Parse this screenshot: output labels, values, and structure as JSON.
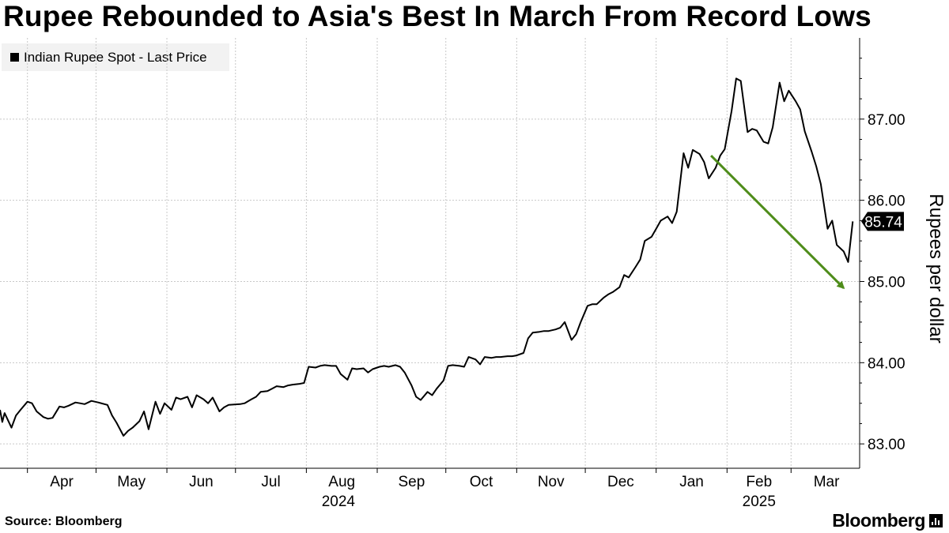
{
  "title": "Rupee Rebounded to Asia's Best In March From Record Lows",
  "source": "Source: Bloomberg",
  "brand": "Bloomberg",
  "chart_data": {
    "type": "line",
    "title": "Rupee Rebounded to Asia's Best In March From Record Lows",
    "ylabel": "Rupees per dollar",
    "ylim": [
      82.7,
      88.0
    ],
    "yticks": [
      83.0,
      84.0,
      85.0,
      86.0,
      87.0
    ],
    "ytick_labels": [
      "83.00",
      "84.00",
      "85.00",
      "86.00",
      "87.00"
    ],
    "xlim": [
      "2024-03-20",
      "2025-03-31"
    ],
    "xticks": [
      {
        "date": "2024-04-01",
        "label": "Apr"
      },
      {
        "date": "2024-05-01",
        "label": "May"
      },
      {
        "date": "2024-06-01",
        "label": "Jun"
      },
      {
        "date": "2024-07-01",
        "label": "Jul"
      },
      {
        "date": "2024-08-01",
        "label": "Aug"
      },
      {
        "date": "2024-09-01",
        "label": "Sep"
      },
      {
        "date": "2024-10-01",
        "label": "Oct"
      },
      {
        "date": "2024-11-01",
        "label": "Nov"
      },
      {
        "date": "2024-12-01",
        "label": "Dec"
      },
      {
        "date": "2025-01-01",
        "label": "Jan"
      },
      {
        "date": "2025-02-01",
        "label": "Feb"
      },
      {
        "date": "2025-03-01",
        "label": "Mar"
      }
    ],
    "year_labels": [
      {
        "date": "2024-08-15",
        "label": "2024"
      },
      {
        "date": "2025-02-15",
        "label": "2025"
      }
    ],
    "grid": true,
    "legend": "top-left",
    "last_value_label": "85.74",
    "colors": {
      "line": "#000000",
      "arrow": "#4e8c1a",
      "grid": "#c8c8c8",
      "badge": "#000000",
      "legend_bg": "#f2f2f2"
    },
    "annotations": [
      {
        "type": "arrow",
        "from": {
          "date": "2025-01-25",
          "value": 86.55
        },
        "to": {
          "date": "2025-03-24",
          "value": 84.92
        }
      }
    ],
    "series": [
      {
        "name": "Indian Rupee Spot - Last Price",
        "points": [
          [
            "2024-03-20",
            83.42
          ],
          [
            "2024-03-21",
            83.27
          ],
          [
            "2024-03-22",
            83.38
          ],
          [
            "2024-03-25",
            83.2
          ],
          [
            "2024-03-27",
            83.35
          ],
          [
            "2024-03-29",
            83.42
          ],
          [
            "2024-04-01",
            83.52
          ],
          [
            "2024-04-03",
            83.5
          ],
          [
            "2024-04-05",
            83.4
          ],
          [
            "2024-04-08",
            83.33
          ],
          [
            "2024-04-10",
            83.31
          ],
          [
            "2024-04-12",
            83.32
          ],
          [
            "2024-04-15",
            83.46
          ],
          [
            "2024-04-17",
            83.45
          ],
          [
            "2024-04-19",
            83.47
          ],
          [
            "2024-04-22",
            83.51
          ],
          [
            "2024-04-24",
            83.5
          ],
          [
            "2024-04-26",
            83.49
          ],
          [
            "2024-04-29",
            83.53
          ],
          [
            "2024-05-02",
            83.51
          ],
          [
            "2024-05-06",
            83.48
          ],
          [
            "2024-05-08",
            83.35
          ],
          [
            "2024-05-10",
            83.26
          ],
          [
            "2024-05-13",
            83.1
          ],
          [
            "2024-05-15",
            83.16
          ],
          [
            "2024-05-17",
            83.2
          ],
          [
            "2024-05-20",
            83.28
          ],
          [
            "2024-05-22",
            83.4
          ],
          [
            "2024-05-24",
            83.18
          ],
          [
            "2024-05-27",
            83.52
          ],
          [
            "2024-05-29",
            83.37
          ],
          [
            "2024-05-31",
            83.5
          ],
          [
            "2024-06-03",
            83.42
          ],
          [
            "2024-06-05",
            83.57
          ],
          [
            "2024-06-07",
            83.55
          ],
          [
            "2024-06-10",
            83.58
          ],
          [
            "2024-06-12",
            83.45
          ],
          [
            "2024-06-14",
            83.6
          ],
          [
            "2024-06-17",
            83.55
          ],
          [
            "2024-06-19",
            83.5
          ],
          [
            "2024-06-21",
            83.57
          ],
          [
            "2024-06-24",
            83.4
          ],
          [
            "2024-06-26",
            83.45
          ],
          [
            "2024-06-28",
            83.48
          ],
          [
            "2024-07-03",
            83.49
          ],
          [
            "2024-07-05",
            83.5
          ],
          [
            "2024-07-08",
            83.55
          ],
          [
            "2024-07-10",
            83.58
          ],
          [
            "2024-07-12",
            83.64
          ],
          [
            "2024-07-15",
            83.65
          ],
          [
            "2024-07-17",
            83.68
          ],
          [
            "2024-07-19",
            83.71
          ],
          [
            "2024-07-22",
            83.7
          ],
          [
            "2024-07-24",
            83.72
          ],
          [
            "2024-07-26",
            83.73
          ],
          [
            "2024-07-29",
            83.74
          ],
          [
            "2024-07-31",
            83.75
          ],
          [
            "2024-08-02",
            83.95
          ],
          [
            "2024-08-05",
            83.94
          ],
          [
            "2024-08-07",
            83.96
          ],
          [
            "2024-08-09",
            83.97
          ],
          [
            "2024-08-12",
            83.96
          ],
          [
            "2024-08-14",
            83.96
          ],
          [
            "2024-08-16",
            83.86
          ],
          [
            "2024-08-19",
            83.79
          ],
          [
            "2024-08-21",
            83.93
          ],
          [
            "2024-08-23",
            83.92
          ],
          [
            "2024-08-26",
            83.93
          ],
          [
            "2024-08-28",
            83.88
          ],
          [
            "2024-08-30",
            83.92
          ],
          [
            "2024-09-02",
            83.95
          ],
          [
            "2024-09-04",
            83.96
          ],
          [
            "2024-09-06",
            83.95
          ],
          [
            "2024-09-09",
            83.97
          ],
          [
            "2024-09-11",
            83.95
          ],
          [
            "2024-09-13",
            83.88
          ],
          [
            "2024-09-16",
            83.72
          ],
          [
            "2024-09-18",
            83.58
          ],
          [
            "2024-09-20",
            83.54
          ],
          [
            "2024-09-23",
            83.64
          ],
          [
            "2024-09-25",
            83.6
          ],
          [
            "2024-09-27",
            83.68
          ],
          [
            "2024-09-30",
            83.78
          ],
          [
            "2024-10-02",
            83.96
          ],
          [
            "2024-10-04",
            83.97
          ],
          [
            "2024-10-07",
            83.96
          ],
          [
            "2024-10-09",
            83.95
          ],
          [
            "2024-10-11",
            84.07
          ],
          [
            "2024-10-14",
            84.04
          ],
          [
            "2024-10-16",
            83.98
          ],
          [
            "2024-10-18",
            84.07
          ],
          [
            "2024-10-21",
            84.06
          ],
          [
            "2024-10-23",
            84.07
          ],
          [
            "2024-10-25",
            84.07
          ],
          [
            "2024-10-28",
            84.08
          ],
          [
            "2024-10-30",
            84.08
          ],
          [
            "2024-11-01",
            84.09
          ],
          [
            "2024-11-04",
            84.12
          ],
          [
            "2024-11-06",
            84.3
          ],
          [
            "2024-11-08",
            84.37
          ],
          [
            "2024-11-11",
            84.38
          ],
          [
            "2024-11-13",
            84.39
          ],
          [
            "2024-11-15",
            84.39
          ],
          [
            "2024-11-18",
            84.41
          ],
          [
            "2024-11-20",
            84.43
          ],
          [
            "2024-11-22",
            84.5
          ],
          [
            "2024-11-25",
            84.28
          ],
          [
            "2024-11-27",
            84.35
          ],
          [
            "2024-11-29",
            84.5
          ],
          [
            "2024-12-02",
            84.7
          ],
          [
            "2024-12-04",
            84.72
          ],
          [
            "2024-12-06",
            84.72
          ],
          [
            "2024-12-09",
            84.8
          ],
          [
            "2024-12-11",
            84.84
          ],
          [
            "2024-12-13",
            84.87
          ],
          [
            "2024-12-16",
            84.93
          ],
          [
            "2024-12-18",
            85.08
          ],
          [
            "2024-12-20",
            85.05
          ],
          [
            "2024-12-23",
            85.18
          ],
          [
            "2024-12-25",
            85.27
          ],
          [
            "2024-12-27",
            85.5
          ],
          [
            "2024-12-30",
            85.55
          ],
          [
            "2025-01-01",
            85.65
          ],
          [
            "2025-01-03",
            85.75
          ],
          [
            "2025-01-06",
            85.8
          ],
          [
            "2025-01-08",
            85.72
          ],
          [
            "2025-01-10",
            85.86
          ],
          [
            "2025-01-13",
            86.58
          ],
          [
            "2025-01-15",
            86.4
          ],
          [
            "2025-01-17",
            86.62
          ],
          [
            "2025-01-20",
            86.57
          ],
          [
            "2025-01-22",
            86.47
          ],
          [
            "2025-01-24",
            86.27
          ],
          [
            "2025-01-27",
            86.4
          ],
          [
            "2025-01-29",
            86.55
          ],
          [
            "2025-01-31",
            86.63
          ],
          [
            "2025-02-03",
            87.1
          ],
          [
            "2025-02-05",
            87.5
          ],
          [
            "2025-02-07",
            87.47
          ],
          [
            "2025-02-10",
            86.84
          ],
          [
            "2025-02-12",
            86.88
          ],
          [
            "2025-02-14",
            86.86
          ],
          [
            "2025-02-17",
            86.72
          ],
          [
            "2025-02-19",
            86.7
          ],
          [
            "2025-02-21",
            86.9
          ],
          [
            "2025-02-24",
            87.45
          ],
          [
            "2025-02-26",
            87.22
          ],
          [
            "2025-02-28",
            87.35
          ],
          [
            "2025-03-03",
            87.22
          ],
          [
            "2025-03-05",
            87.12
          ],
          [
            "2025-03-07",
            86.85
          ],
          [
            "2025-03-10",
            86.6
          ],
          [
            "2025-03-12",
            86.42
          ],
          [
            "2025-03-14",
            86.2
          ],
          [
            "2025-03-17",
            85.65
          ],
          [
            "2025-03-19",
            85.75
          ],
          [
            "2025-03-21",
            85.45
          ],
          [
            "2025-03-24",
            85.37
          ],
          [
            "2025-03-26",
            85.24
          ],
          [
            "2025-03-28",
            85.74
          ]
        ]
      }
    ]
  }
}
